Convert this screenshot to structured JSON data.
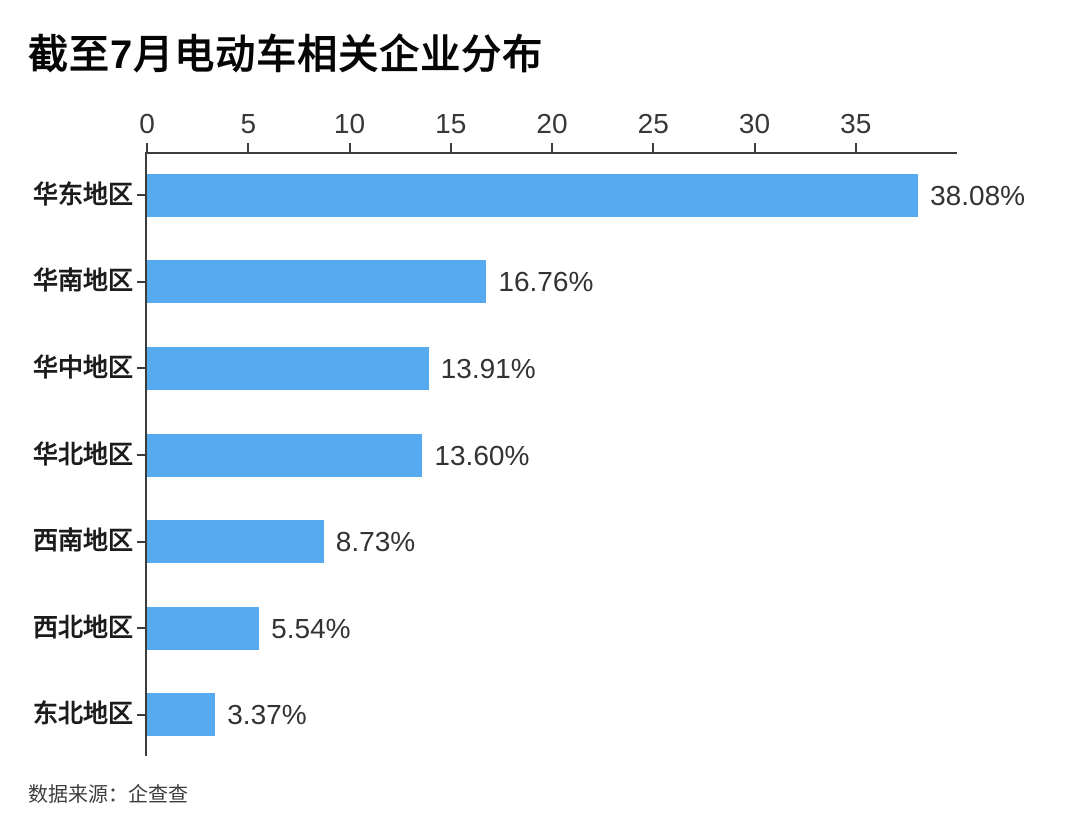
{
  "header": {
    "title": "截至7月电动车相关企业分布"
  },
  "footer": {
    "source": "数据来源：企查查"
  },
  "chart_data": {
    "type": "bar",
    "orientation": "horizontal",
    "title": "截至7月电动车相关企业分布",
    "categories": [
      "华东地区",
      "华南地区",
      "华中地区",
      "华北地区",
      "西南地区",
      "西北地区",
      "东北地区"
    ],
    "values": [
      38.08,
      16.76,
      13.91,
      13.6,
      8.73,
      5.54,
      3.37
    ],
    "value_labels": [
      "38.08%",
      "16.76%",
      "13.91%",
      "13.60%",
      "8.73%",
      "5.54%",
      "3.37%"
    ],
    "x_ticks": [
      0,
      5,
      10,
      15,
      20,
      25,
      30,
      35
    ],
    "xlim": [
      0,
      40
    ],
    "grid": false,
    "legend": null,
    "bar_color": "#57a9f0",
    "axis_color": "#3c3c3c",
    "source": "数据来源：企查查"
  }
}
